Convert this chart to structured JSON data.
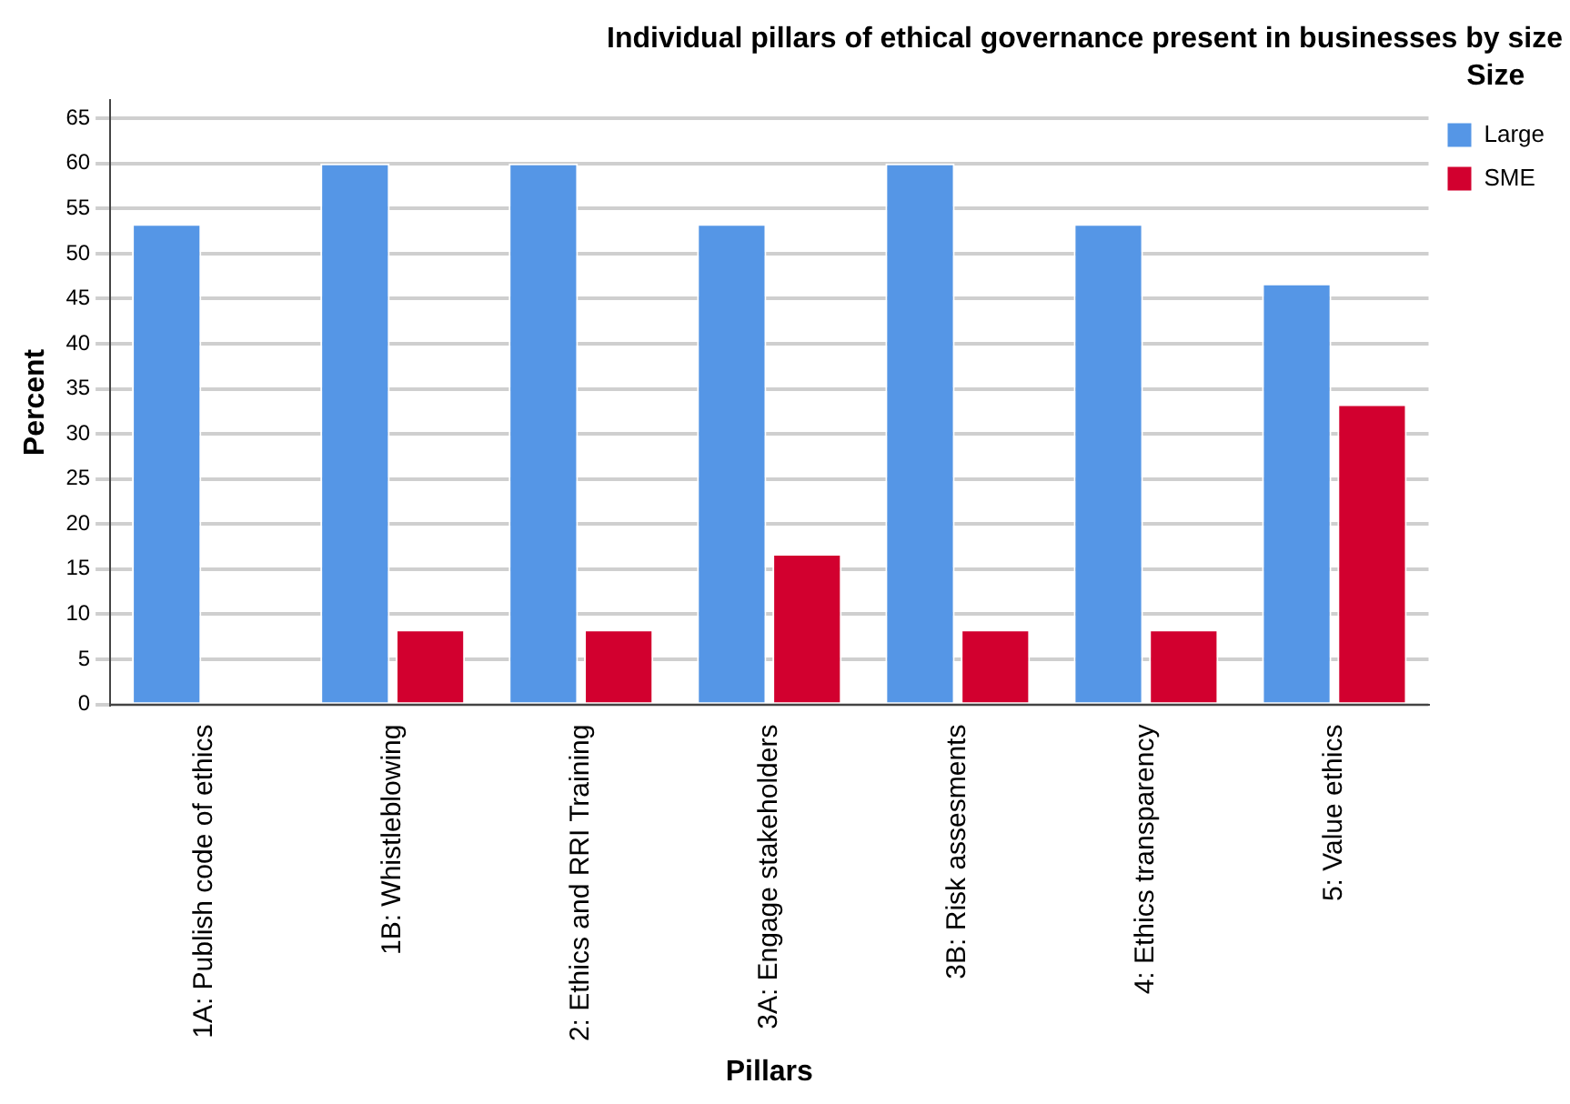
{
  "chart_data": {
    "type": "bar",
    "title": "Individual pillars of ethical governance present in businesses by size",
    "xlabel": "Pillars",
    "ylabel": "Percent",
    "legend_title": "Size",
    "categories": [
      "1A: Publish code of ethics",
      "1B: Whistleblowing",
      "2: Ethics and RRI Training",
      "3A: Engage stakeholders",
      "3B: Risk assesments",
      "4: Ethics transparency",
      "5: Value ethics"
    ],
    "series": [
      {
        "name": "Large",
        "color": "#5596e6",
        "values": [
          53.3,
          60,
          60,
          53.3,
          60,
          53.3,
          46.7
        ]
      },
      {
        "name": "SME",
        "color": "#d2002f",
        "values": [
          0,
          8.3,
          8.3,
          16.7,
          8.3,
          8.3,
          33.3
        ]
      }
    ],
    "ylim": [
      0,
      67
    ],
    "yticks": [
      0,
      5,
      10,
      15,
      20,
      25,
      30,
      35,
      40,
      45,
      50,
      55,
      60,
      65
    ],
    "grid": "y",
    "legend": "top right"
  }
}
